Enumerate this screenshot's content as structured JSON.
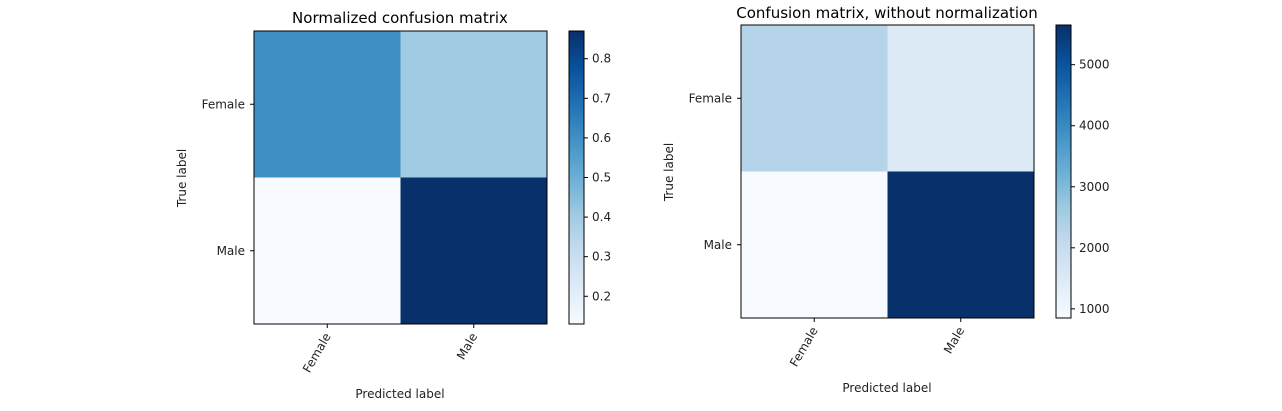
{
  "chart_data": [
    {
      "type": "heatmap",
      "title": "Normalized confusion matrix",
      "xlabel": "Predicted label",
      "ylabel": "True label",
      "x_categories": [
        "Female",
        "Male"
      ],
      "y_categories": [
        "Female",
        "Male"
      ],
      "values": [
        [
          0.6,
          0.4
        ],
        [
          0.13,
          0.87
        ]
      ],
      "colormap": "Blues",
      "colorbar": {
        "range": [
          0.13,
          0.87
        ],
        "ticks": [
          "0.2",
          "0.3",
          "0.4",
          "0.5",
          "0.6",
          "0.7",
          "0.8"
        ]
      },
      "grid": false
    },
    {
      "type": "heatmap",
      "title": "Confusion matrix, without normalization",
      "xlabel": "Predicted label",
      "ylabel": "True label",
      "x_categories": [
        "Female",
        "Male"
      ],
      "y_categories": [
        "Female",
        "Male"
      ],
      "values": [
        [
          2300,
          1500
        ],
        [
          850,
          5650
        ]
      ],
      "colormap": "Blues",
      "colorbar": {
        "range": [
          850,
          5650
        ],
        "ticks": [
          "1000",
          "2000",
          "3000",
          "4000",
          "5000"
        ]
      },
      "grid": false
    }
  ]
}
